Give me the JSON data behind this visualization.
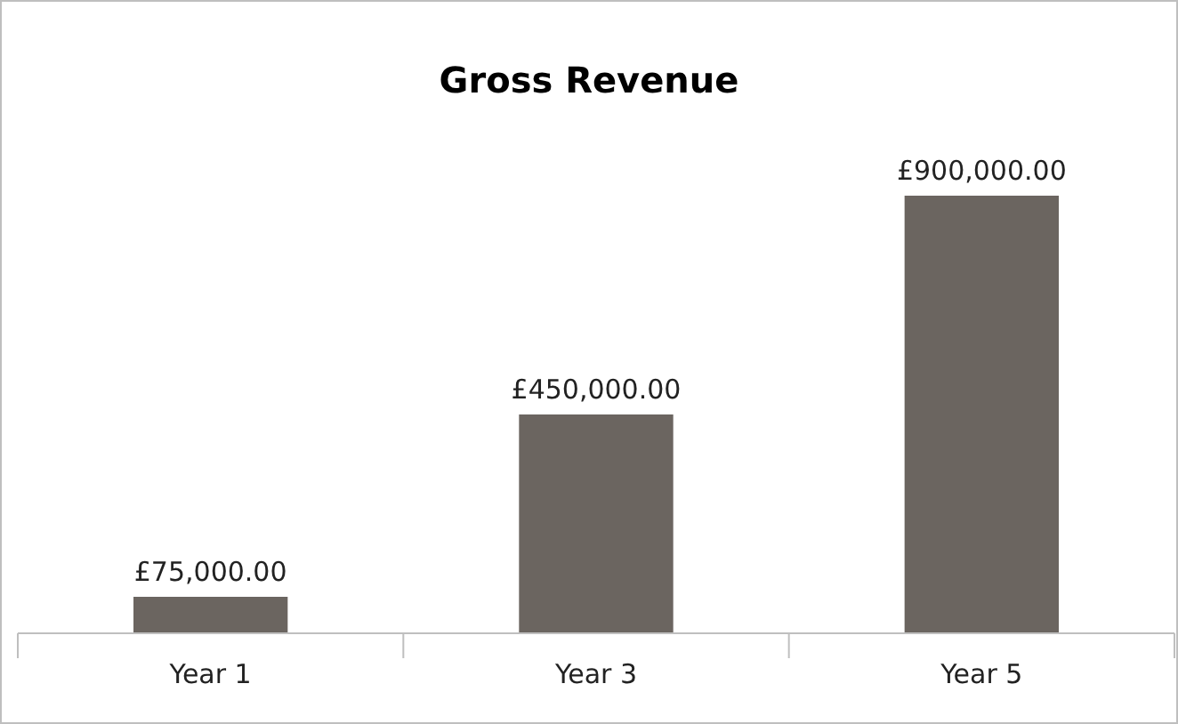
{
  "chart_data": {
    "type": "bar",
    "title": "Gross Revenue",
    "categories": [
      "Year 1",
      "Year 3",
      "Year 5"
    ],
    "values": [
      75000,
      450000,
      900000
    ],
    "color": "#6b6560",
    "value_labels": [
      "£75,000.00",
      "£450,000.00",
      "£900,000.00"
    ]
  }
}
